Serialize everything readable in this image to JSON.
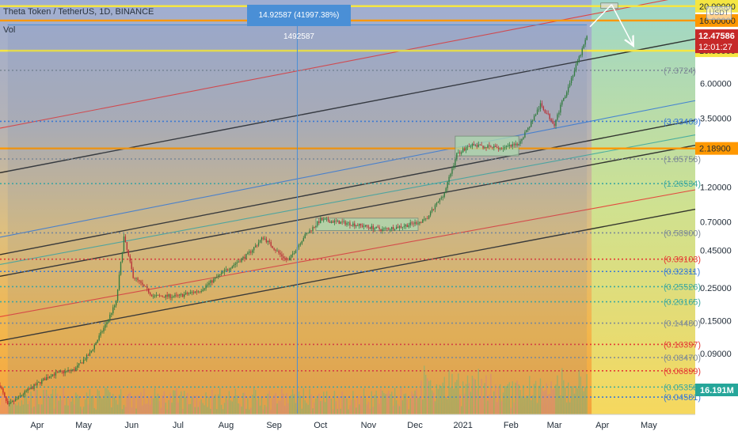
{
  "chart_data": {
    "type": "candlestick",
    "title": "Theta Token / TetherUS, 1D, BINANCE",
    "indicator": "Vol",
    "currency_badge": "USDT",
    "y_scale": "log",
    "ylim": [
      0.035,
      22
    ],
    "x_range": [
      "2020-03-08",
      "2021-05-31"
    ],
    "x_ticks": [
      {
        "date": "2020-04-01",
        "label": "Apr"
      },
      {
        "date": "2020-05-01",
        "label": "May"
      },
      {
        "date": "2020-06-01",
        "label": "Jun"
      },
      {
        "date": "2020-07-01",
        "label": "Jul"
      },
      {
        "date": "2020-08-01",
        "label": "Aug"
      },
      {
        "date": "2020-09-01",
        "label": "Sep"
      },
      {
        "date": "2020-10-01",
        "label": "Oct"
      },
      {
        "date": "2020-11-01",
        "label": "Nov"
      },
      {
        "date": "2020-12-01",
        "label": "Dec"
      },
      {
        "date": "2021-01-01",
        "label": "2021"
      },
      {
        "date": "2021-02-01",
        "label": "Feb"
      },
      {
        "date": "2021-03-01",
        "label": "Mar"
      },
      {
        "date": "2021-04-01",
        "label": "Apr"
      },
      {
        "date": "2021-05-01",
        "label": "May"
      }
    ],
    "price_axis_labels": [
      {
        "value": 20.0,
        "label": "20.00000"
      },
      {
        "value": 10.0,
        "label": "10.00000"
      },
      {
        "value": 6.0,
        "label": "6.00000"
      },
      {
        "value": 3.5,
        "label": "3.50000"
      },
      {
        "value": 1.2,
        "label": "1.20000"
      },
      {
        "value": 0.7,
        "label": "0.70000"
      },
      {
        "value": 0.45,
        "label": "0.45000"
      },
      {
        "value": 0.25,
        "label": "0.25000"
      },
      {
        "value": 0.15,
        "label": "0.15000"
      },
      {
        "value": 0.09,
        "label": "0.09000"
      }
    ],
    "fib_levels": [
      {
        "value": 7.3724,
        "label": "(7.3724)",
        "color": "#7e8a96"
      },
      {
        "value": 3.33469,
        "label": "(3.33469)",
        "color": "#3a7bd5"
      },
      {
        "value": 1.85756,
        "label": "(1.85756)",
        "color": "#7e8a96"
      },
      {
        "value": 1.26534,
        "label": "(1.26534)",
        "color": "#3ea99f"
      },
      {
        "value": 0.589,
        "label": "(0.58900)",
        "color": "#7e8a96"
      },
      {
        "value": 0.39103,
        "label": "(0.39103)",
        "color": "#e53935"
      },
      {
        "value": 0.32311,
        "label": "(0.32311)",
        "color": "#3a7bd5"
      },
      {
        "value": 0.25526,
        "label": "(0.25526)",
        "color": "#3ea99f"
      },
      {
        "value": 0.20165,
        "label": "(0.20165)",
        "color": "#3ea99f"
      },
      {
        "value": 0.1448,
        "label": "(0.14480)",
        "color": "#7e8a96"
      },
      {
        "value": 0.10397,
        "label": "(0.10397)",
        "color": "#e53935"
      },
      {
        "value": 0.0847,
        "label": "(0.08470)",
        "color": "#7e8a96"
      },
      {
        "value": 0.06899,
        "label": "(0.06899)",
        "color": "#e53935"
      },
      {
        "value": 0.05358,
        "label": "(0.05358)",
        "color": "#3ea99f"
      },
      {
        "value": 0.04581,
        "label": "(0.04581)",
        "color": "#3a7bd5"
      }
    ],
    "horizontal_levels": [
      {
        "value": 20.0,
        "color": "#f5e642",
        "tag": "20.00000",
        "tag_bg": "#f5e642"
      },
      {
        "value": 16.0,
        "color": "#ff9800",
        "tag": "16.00000",
        "tag_bg": "#ff9800"
      },
      {
        "value": 10.0,
        "color": "#f5e642",
        "tag": "10.00000",
        "tag_bg": "#f5e642"
      },
      {
        "value": 2.189,
        "color": "#ff9800",
        "tag": "2.18900",
        "tag_bg": "#ff9800"
      }
    ],
    "last_price": {
      "value": 12.47586,
      "label": "12.47586",
      "countdown": "12:01:27",
      "color": "#c62828"
    },
    "last_volume": {
      "label": "16.191M",
      "color": "#26a69a"
    },
    "measurement": {
      "label": "14.92587 (41997.38%) 1492587",
      "from": {
        "date": "2020-03-13",
        "price": 0.0355
      },
      "to": {
        "date": "2021-03-22",
        "price": 14.96
      },
      "color": "#4a8fd6"
    },
    "channel_lines": [
      {
        "p1": [
          "2020-03-08",
          0.42
        ],
        "p2": [
          "2021-05-31",
          3.4
        ],
        "color": "#222222"
      },
      {
        "p1": [
          "2020-03-08",
          1.5
        ],
        "p2": [
          "2021-05-31",
          12.0
        ],
        "color": "#222222"
      },
      {
        "p1": [
          "2020-03-08",
          0.3
        ],
        "p2": [
          "2021-05-31",
          2.3
        ],
        "color": "#222222"
      },
      {
        "p1": [
          "2020-03-08",
          0.55
        ],
        "p2": [
          "2021-05-31",
          4.6
        ],
        "color": "#3a7bd5"
      },
      {
        "p1": [
          "2020-03-08",
          3.0
        ],
        "p2": [
          "2021-05-31",
          24.0
        ],
        "color": "#e53935"
      },
      {
        "p1": [
          "2020-03-08",
          0.36
        ],
        "p2": [
          "2021-05-31",
          2.7
        ],
        "color": "#3ea99f"
      },
      {
        "p1": [
          "2020-03-08",
          0.16
        ],
        "p2": [
          "2021-05-31",
          1.15
        ],
        "color": "#e53935"
      },
      {
        "p1": [
          "2020-03-08",
          0.11
        ],
        "p2": [
          "2021-05-31",
          0.85
        ],
        "color": "#222222"
      }
    ],
    "ranges": [
      {
        "x0": "2020-09-28",
        "x1": "2020-12-03",
        "y0": 0.61,
        "y1": 0.74,
        "color": "#b8e6b0"
      },
      {
        "x0": "2020-12-27",
        "x1": "2021-02-06",
        "y0": 1.95,
        "y1": 2.65,
        "color": "#b8e6b0"
      },
      {
        "x0": "2021-03-31",
        "x1": "2021-04-11",
        "y0": 19.3,
        "y1": 21.0,
        "color": "#d9d9d9"
      }
    ],
    "projection_arrows": [
      {
        "p1": [
          "2021-03-24",
          14.5
        ],
        "p2": [
          "2021-04-07",
          20.5
        ]
      },
      {
        "p1": [
          "2021-04-07",
          20.5
        ],
        "p2": [
          "2021-04-21",
          10.8
        ]
      }
    ],
    "price_anchors": [
      [
        "2020-03-08",
        0.055
      ],
      [
        "2020-03-13",
        0.04
      ],
      [
        "2020-03-25",
        0.05
      ],
      [
        "2020-04-10",
        0.065
      ],
      [
        "2020-04-25",
        0.07
      ],
      [
        "2020-05-05",
        0.09
      ],
      [
        "2020-05-15",
        0.14
      ],
      [
        "2020-05-22",
        0.2
      ],
      [
        "2020-05-27",
        0.55
      ],
      [
        "2020-06-02",
        0.3
      ],
      [
        "2020-06-15",
        0.22
      ],
      [
        "2020-07-01",
        0.22
      ],
      [
        "2020-07-15",
        0.24
      ],
      [
        "2020-08-01",
        0.33
      ],
      [
        "2020-08-15",
        0.42
      ],
      [
        "2020-08-25",
        0.55
      ],
      [
        "2020-09-05",
        0.42
      ],
      [
        "2020-09-10",
        0.38
      ],
      [
        "2020-09-20",
        0.55
      ],
      [
        "2020-10-01",
        0.72
      ],
      [
        "2020-10-20",
        0.68
      ],
      [
        "2020-11-10",
        0.62
      ],
      [
        "2020-11-25",
        0.66
      ],
      [
        "2020-12-08",
        0.72
      ],
      [
        "2020-12-20",
        1.1
      ],
      [
        "2020-12-28",
        2.0
      ],
      [
        "2021-01-05",
        2.3
      ],
      [
        "2021-01-25",
        2.2
      ],
      [
        "2021-02-05",
        2.3
      ],
      [
        "2021-02-12",
        3.0
      ],
      [
        "2021-02-20",
        4.3
      ],
      [
        "2021-03-01",
        3.2
      ],
      [
        "2021-03-05",
        4.2
      ],
      [
        "2021-03-12",
        6.5
      ],
      [
        "2021-03-18",
        9.5
      ],
      [
        "2021-03-22",
        12.5
      ]
    ]
  }
}
